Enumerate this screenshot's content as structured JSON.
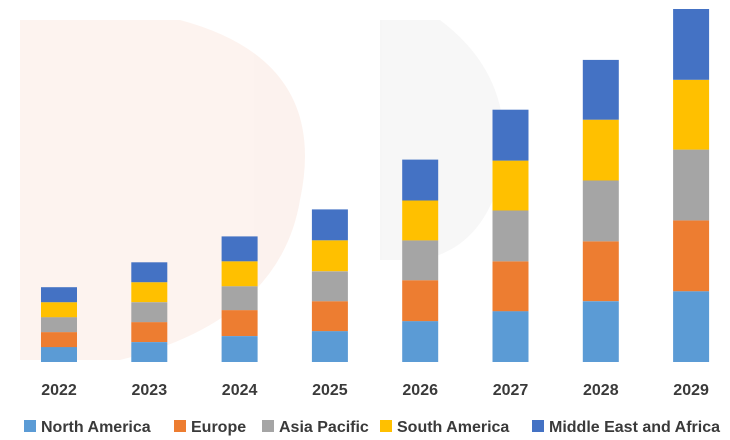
{
  "chart_data": {
    "type": "bar",
    "stacked": true,
    "title": "",
    "xlabel": "",
    "ylabel": "",
    "categories": [
      "2022",
      "2023",
      "2024",
      "2025",
      "2026",
      "2027",
      "2028",
      "2029"
    ],
    "series": [
      {
        "name": "North America",
        "color": "#5B9BD5",
        "values": [
          15,
          20,
          26,
          31,
          41,
          51,
          61,
          71
        ]
      },
      {
        "name": "Europe",
        "color": "#ED7D31",
        "values": [
          15,
          20,
          26,
          30,
          41,
          50,
          60,
          71
        ]
      },
      {
        "name": "Asia Pacific",
        "color": "#A5A5A5",
        "values": [
          15,
          20,
          24,
          30,
          40,
          51,
          61,
          71
        ]
      },
      {
        "name": "South America",
        "color": "#FFC000",
        "values": [
          15,
          20,
          25,
          31,
          40,
          50,
          61,
          70
        ]
      },
      {
        "name": "Middle East and Africa",
        "color": "#4472C4",
        "values": [
          15,
          20,
          25,
          31,
          41,
          51,
          60,
          71
        ]
      }
    ],
    "ylim": [
      0,
      355
    ],
    "grid": false,
    "legend_position": "bottom"
  }
}
